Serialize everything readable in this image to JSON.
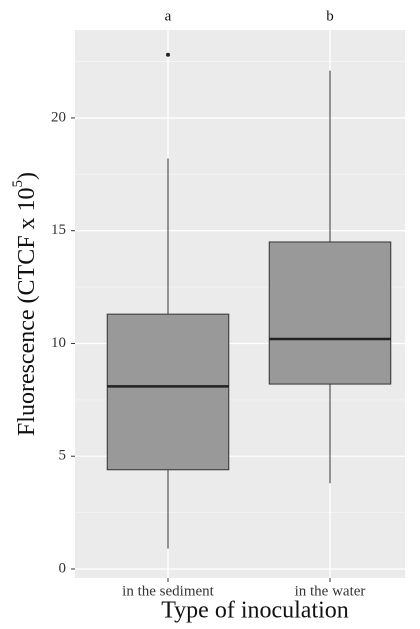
{
  "chart_data": {
    "type": "box",
    "ylabel": {
      "text": "Fluorescence (CTCF x 10",
      "superscript": "5",
      "suffix": ")"
    },
    "xlabel": "Type of inoculation",
    "categories": [
      "in the sediment",
      "in the water"
    ],
    "annotations": [
      "a",
      "b"
    ],
    "boxes": [
      {
        "min": 0.9,
        "q1": 4.4,
        "median": 8.1,
        "q3": 11.3,
        "max": 18.2,
        "outliers": [
          22.8
        ]
      },
      {
        "min": 3.8,
        "q1": 8.2,
        "median": 10.2,
        "q3": 14.5,
        "max": 22.1,
        "outliers": []
      }
    ],
    "color": "#999999",
    "ylim": [
      -0.4,
      23.9
    ],
    "yticks": [
      0,
      5,
      10,
      15,
      20
    ],
    "yminor": [
      2.5,
      7.5,
      12.5,
      17.5,
      22.5
    ],
    "grid": true
  }
}
